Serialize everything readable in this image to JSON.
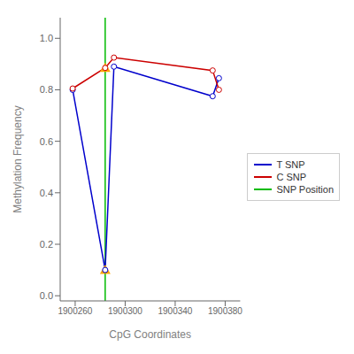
{
  "chart_data": {
    "type": "line",
    "xlabel": "CpG Coordinates",
    "ylabel": "Methylation Frequency",
    "xlim": [
      1900248,
      1900392
    ],
    "ylim": [
      -0.02,
      1.08
    ],
    "xticks": [
      1900260,
      1900300,
      1900340,
      1900380
    ],
    "yticks": [
      {
        "value": 0.0,
        "label": "0.0"
      },
      0.2,
      0.4,
      0.6,
      0.8,
      {
        "value": 1.0,
        "label": "1.0"
      }
    ],
    "grid": false,
    "legend": "right",
    "series": [
      {
        "name": "T SNP",
        "type": "line",
        "marker": "circle",
        "color": "#0000cc",
        "x": [
          1900258,
          1900284,
          1900291,
          1900370,
          1900375
        ],
        "values": [
          0.8,
          0.1,
          0.89,
          0.775,
          0.845
        ]
      },
      {
        "name": "C SNP",
        "type": "line",
        "marker": "circle",
        "color": "#cc0000",
        "x": [
          1900258,
          1900284,
          1900291,
          1900370,
          1900375
        ],
        "values": [
          0.805,
          0.885,
          0.925,
          0.875,
          0.8
        ]
      },
      {
        "name": "SNP Position",
        "type": "vline",
        "color": "#00bb00",
        "x": [
          1900284
        ]
      },
      {
        "type": "scatter",
        "marker": "triangle",
        "color": "#FFA500",
        "x": [
          1900284,
          1900284
        ],
        "values": [
          0.885,
          0.1
        ]
      }
    ]
  }
}
